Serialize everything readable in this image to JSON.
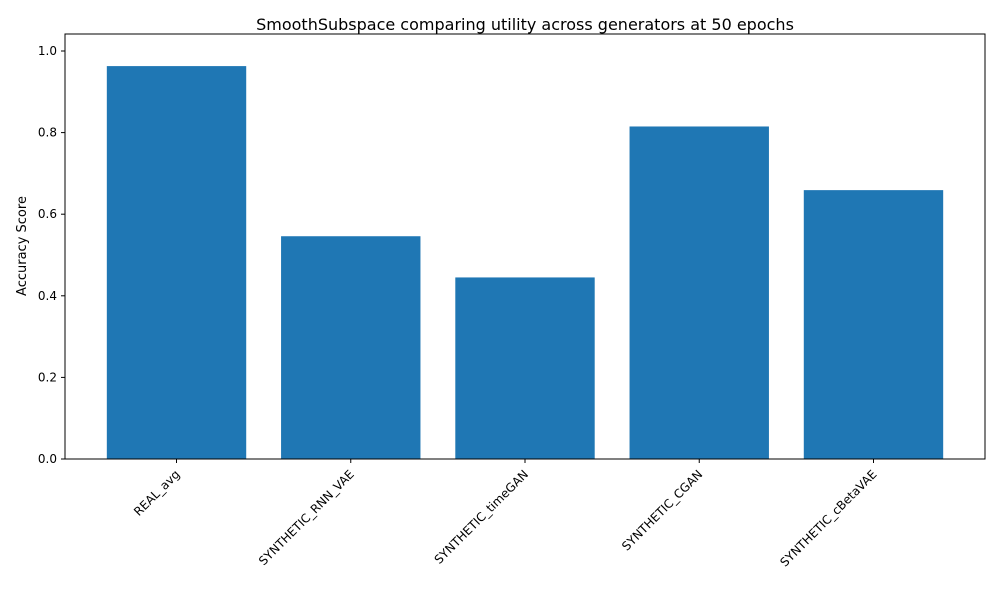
{
  "chart_data": {
    "type": "bar",
    "title": "SmoothSubspace comparing utility across generators at 50 epochs",
    "xlabel": "",
    "ylabel": "Accuracy Score",
    "categories": [
      "REAL_avg",
      "SYNTHETIC_RNN_VAE",
      "SYNTHETIC_timeGAN",
      "SYNTHETIC_CGAN",
      "SYNTHETIC_cBetaVAE"
    ],
    "values": [
      0.963,
      0.546,
      0.445,
      0.815,
      0.659
    ],
    "ylim": [
      0,
      1.0
    ],
    "yticks": [
      0.0,
      0.2,
      0.4,
      0.6,
      0.8,
      1.0
    ],
    "ytick_labels": [
      "0.0",
      "0.2",
      "0.4",
      "0.6",
      "0.8",
      "1.0"
    ],
    "grid": false,
    "colors": {
      "bar": "#1f77b4",
      "axes": "#000000",
      "background": "#ffffff"
    }
  }
}
